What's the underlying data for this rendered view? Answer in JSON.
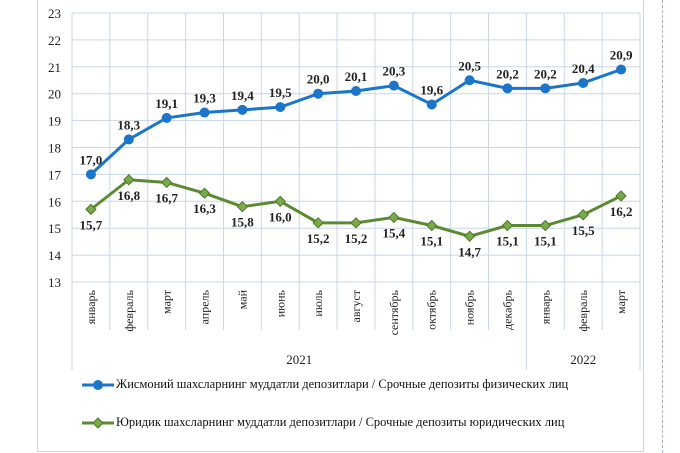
{
  "chart_data": {
    "type": "line",
    "categories": [
      "январь",
      "февраль",
      "март",
      "апрель",
      "май",
      "июнь",
      "июль",
      "август",
      "сентябрь",
      "октябрь",
      "ноябрь",
      "декабрь",
      "январь",
      "февраль",
      "март"
    ],
    "year_groups": [
      {
        "label": "2021",
        "count": 12
      },
      {
        "label": "2022",
        "count": 3
      }
    ],
    "ylim": [
      13,
      23
    ],
    "yticks": [
      13,
      14,
      15,
      16,
      17,
      18,
      19,
      20,
      21,
      22,
      23
    ],
    "grid": true,
    "legend_position": "bottom",
    "series": [
      {
        "name": "Жисмоний шахсларнинг  муддатли  депозитлари  / Срочные депозиты  физических  лиц",
        "color": "#1b75c9",
        "marker": "circle",
        "values": [
          17.0,
          18.3,
          19.1,
          19.3,
          19.4,
          19.5,
          20.0,
          20.1,
          20.3,
          19.6,
          20.5,
          20.2,
          20.2,
          20.4,
          20.9
        ],
        "labels": [
          "17,0",
          "18,3",
          "19,1",
          "19,3",
          "19,4",
          "19,5",
          "20,0",
          "20,1",
          "20,3",
          "19,6",
          "20,5",
          "20,2",
          "20,2",
          "20,4",
          "20,9"
        ]
      },
      {
        "name": "Юридик  шахсларнинг  муддатли  депозитлари  / Срочные депозиты юридических  лиц",
        "color": "#5b8a32",
        "marker": "diamond",
        "values": [
          15.7,
          16.8,
          16.7,
          16.3,
          15.8,
          16.0,
          15.2,
          15.2,
          15.4,
          15.1,
          14.7,
          15.1,
          15.1,
          15.5,
          16.2
        ],
        "labels": [
          "15,7",
          "16,8",
          "16,7",
          "16,3",
          "15,8",
          "16,0",
          "15,2",
          "15,2",
          "15,4",
          "15,1",
          "14,7",
          "15,1",
          "15,1",
          "15,5",
          "16,2"
        ]
      }
    ]
  }
}
